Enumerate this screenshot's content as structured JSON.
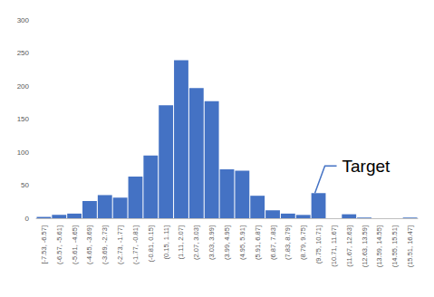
{
  "chart_data": {
    "type": "bar",
    "categories": [
      "[-7.53, -6.57]",
      "(-6.57, -5.61]",
      "(-5.61, -4.65]",
      "(-4.65, -3.69]",
      "(-3.69, -2.73]",
      "(-2.73, -1.77]",
      "(-1.77, -0.81]",
      "(-0.81, 0.15]",
      "(0.15, 1.11]",
      "(1.11, 2.07]",
      "(2.07, 3.03]",
      "(3.03, 3.99]",
      "(3.99, 4.95]",
      "(4.95, 5.91]",
      "(5.91, 6.87]",
      "(6.87, 7.83]",
      "(7.83, 8.79]",
      "(8.79, 9.75]",
      "(9.75, 10.71]",
      "(10.71, 11.67]",
      "(11.67, 12.63]",
      "(12.63, 13.59]",
      "(13.59, 14.55]",
      "(14.55, 15.51]",
      "(15.51, 16.47]"
    ],
    "values": [
      2,
      5,
      7,
      26,
      35,
      31,
      63,
      95,
      171,
      239,
      197,
      177,
      74,
      72,
      34,
      12,
      7,
      5,
      38,
      0,
      6,
      1,
      0,
      0,
      1
    ],
    "color": "#4472c4",
    "ylim": [
      0,
      300
    ],
    "yticks": [
      0,
      50,
      100,
      150,
      200,
      250,
      300
    ],
    "grid": false,
    "annotations": [
      {
        "text": "Target",
        "category": "(9.75, 10.71]"
      }
    ]
  }
}
